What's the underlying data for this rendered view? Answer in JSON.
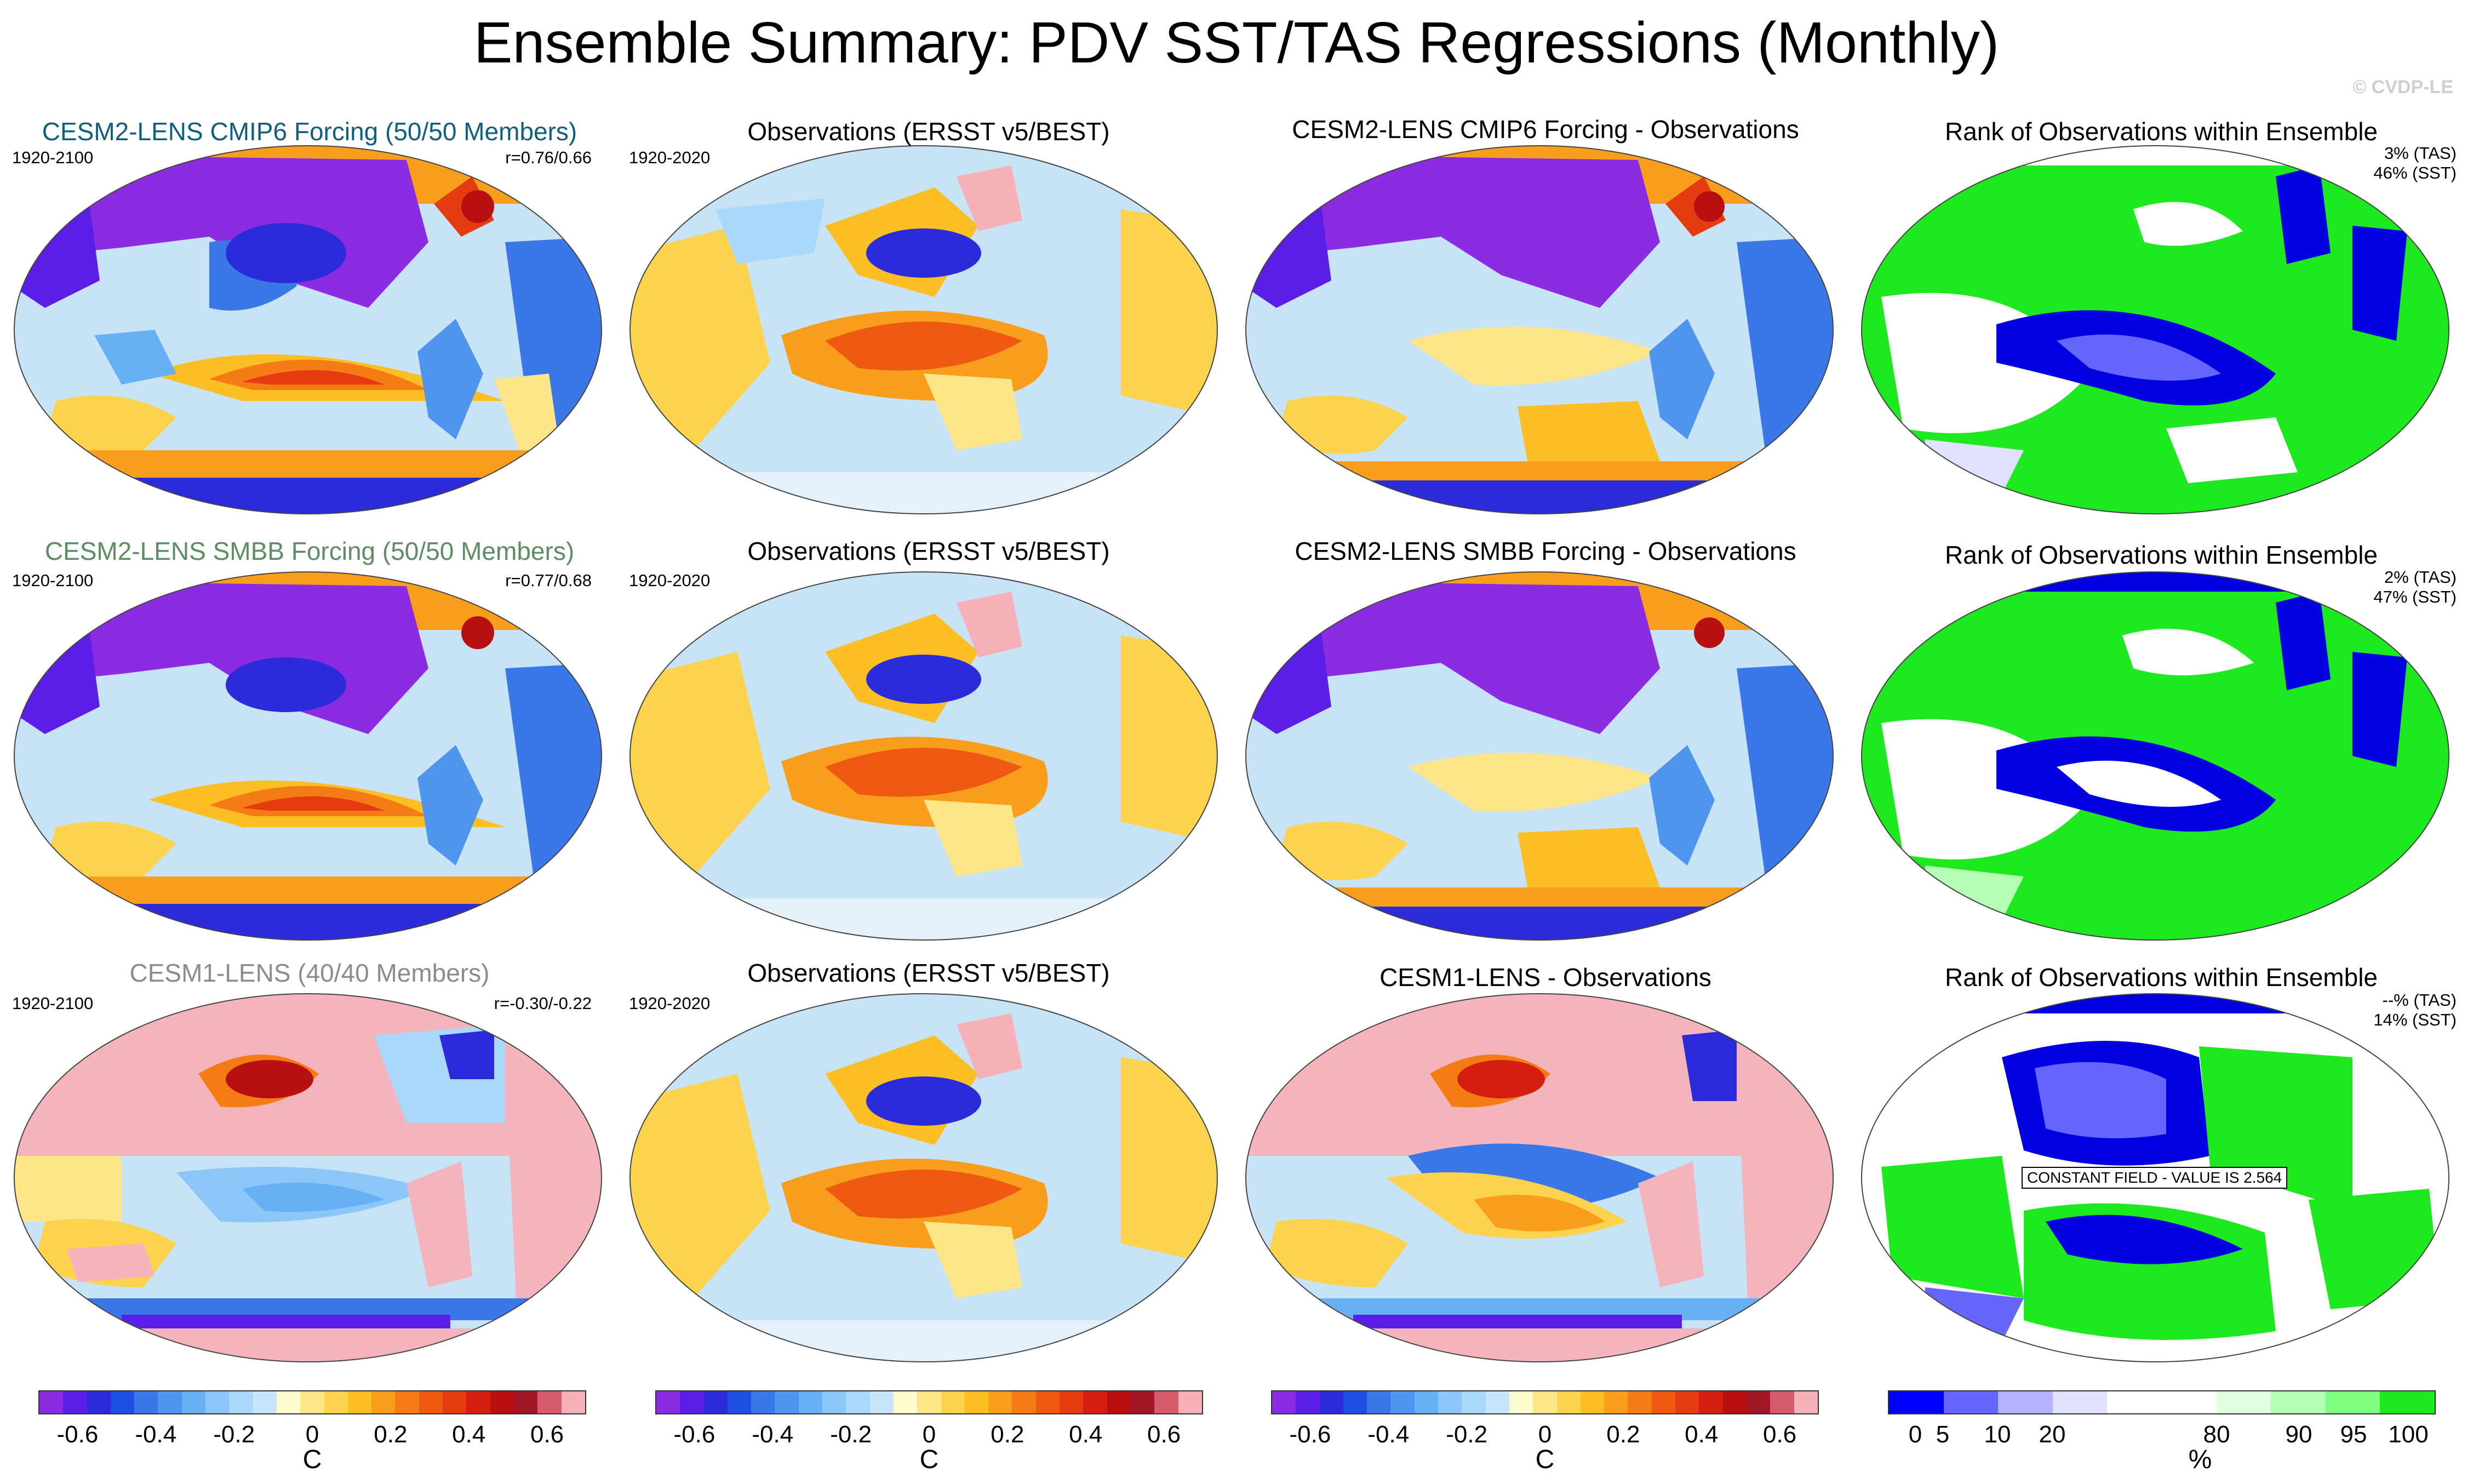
{
  "title": "Ensemble Summary: PDV SST/TAS Regressions (Monthly)",
  "watermark": "© CVDP-LE",
  "rows": [
    {
      "ens": {
        "title": "CESM2-LENS CMIP6 Forcing (50/50 Members)",
        "title_color": "#0e5f80",
        "years": "1920-2100",
        "r": "r=0.76/0.66"
      },
      "obs": {
        "title": "Observations (ERSST v5/BEST)",
        "years": "1920-2020"
      },
      "diff": {
        "title": "CESM2-LENS CMIP6 Forcing - Observations"
      },
      "rank": {
        "title": "Rank of Observations within Ensemble",
        "tas": "3% (TAS)",
        "sst": "46% (SST)"
      }
    },
    {
      "ens": {
        "title": "CESM2-LENS SMBB Forcing (50/50 Members)",
        "title_color": "#5e8c64",
        "years": "1920-2100",
        "r": "r=0.77/0.68"
      },
      "obs": {
        "title": "Observations (ERSST v5/BEST)",
        "years": "1920-2020"
      },
      "diff": {
        "title": "CESM2-LENS SMBB Forcing - Observations"
      },
      "rank": {
        "title": "Rank of Observations within Ensemble",
        "tas": "2% (TAS)",
        "sst": "47% (SST)"
      }
    },
    {
      "ens": {
        "title": "CESM1-LENS (40/40 Members)",
        "title_color": "#8c8c8c",
        "years": "1920-2100",
        "r": "r=-0.30/-0.22"
      },
      "obs": {
        "title": "Observations (ERSST v5/BEST)",
        "years": "1920-2020"
      },
      "diff": {
        "title": "CESM1-LENS - Observations"
      },
      "rank": {
        "title": "Rank of Observations within Ensemble",
        "tas": "--% (TAS)",
        "sst": "14% (SST)",
        "constant_field": "CONSTANT FIELD - VALUE IS 2.564"
      }
    }
  ],
  "colorbar_c": {
    "colors": [
      "#8b2be2",
      "#5a1ee6",
      "#2b2bd9",
      "#1f4fe0",
      "#3a78e8",
      "#4f95ee",
      "#68b0f4",
      "#8ac6f8",
      "#aad8fa",
      "#c8e6fb",
      "#fffbcc",
      "#fde68a",
      "#fcd34d",
      "#fbbf24",
      "#f99e1c",
      "#f57c14",
      "#ef5a12",
      "#e53b10",
      "#d61e10",
      "#b81010",
      "#a11727",
      "#d45a6c",
      "#f5b0b8"
    ],
    "ticks": [
      "-0.6",
      "-0.4",
      "-0.2",
      "0",
      "0.2",
      "0.4",
      "0.6"
    ],
    "tick_values": [
      -0.6,
      -0.4,
      -0.2,
      0,
      0.2,
      0.4,
      0.6
    ],
    "range": [
      -0.7,
      0.7
    ],
    "unit": "C"
  },
  "colorbar_pct": {
    "colors": [
      "#0000ff",
      "#6666ff",
      "#b3b3ff",
      "#e0e0ff",
      "#ffffff",
      "#ffffff",
      "#e0ffe0",
      "#b3ffb3",
      "#80ff80",
      "#1ee81e"
    ],
    "ticks": [
      "0",
      "5",
      "10",
      "20",
      "80",
      "90",
      "95",
      "100"
    ],
    "tick_positions": [
      0.5,
      1.0,
      2.0,
      3.0,
      6.0,
      7.5,
      8.5,
      9.5
    ],
    "unit": "%"
  },
  "colors": {
    "land_pink": "#f4b4bc",
    "ocean_light": "#c8e3f5",
    "purple": "#8b2be2",
    "green": "#1ee81e",
    "blue": "#0000e0"
  }
}
